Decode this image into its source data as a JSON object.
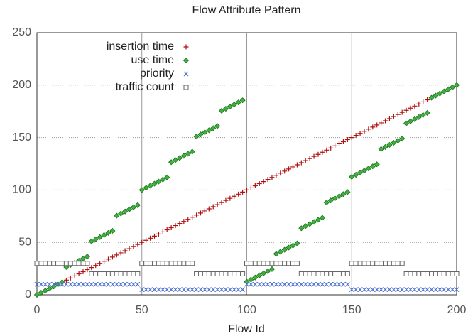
{
  "chart_data": {
    "type": "scatter",
    "title": "Flow Attribute Pattern",
    "x_label": "Flow Id",
    "x": [
      0,
      2,
      4,
      6,
      8,
      10,
      12,
      14,
      16,
      18,
      20,
      22,
      24,
      26,
      28,
      30,
      32,
      34,
      36,
      38,
      40,
      42,
      44,
      46,
      48,
      50,
      52,
      54,
      56,
      58,
      60,
      62,
      64,
      66,
      68,
      70,
      72,
      74,
      76,
      78,
      80,
      82,
      84,
      86,
      88,
      90,
      92,
      94,
      96,
      98,
      100,
      102,
      104,
      106,
      108,
      110,
      112,
      114,
      116,
      118,
      120,
      122,
      124,
      126,
      128,
      130,
      132,
      134,
      136,
      138,
      140,
      142,
      144,
      146,
      148,
      150,
      152,
      154,
      156,
      158,
      160,
      162,
      164,
      166,
      168,
      170,
      172,
      174,
      176,
      178,
      180,
      182,
      184,
      186,
      188,
      190,
      192,
      194,
      196,
      198,
      200
    ],
    "series": [
      {
        "name": "insertion time",
        "color": "#b01010",
        "marker": "plus",
        "values": [
          0,
          2,
          4,
          6,
          8,
          10,
          12,
          14,
          16,
          18,
          20,
          22,
          24,
          26,
          28,
          30,
          32,
          34,
          36,
          38,
          40,
          42,
          44,
          46,
          48,
          50,
          52,
          54,
          56,
          58,
          60,
          62,
          64,
          66,
          68,
          70,
          72,
          74,
          76,
          78,
          80,
          82,
          84,
          86,
          88,
          90,
          92,
          94,
          96,
          98,
          100,
          102,
          104,
          106,
          108,
          110,
          112,
          114,
          116,
          118,
          120,
          122,
          124,
          126,
          128,
          130,
          132,
          134,
          136,
          138,
          140,
          142,
          144,
          146,
          148,
          150,
          152,
          154,
          156,
          158,
          160,
          162,
          164,
          166,
          168,
          170,
          172,
          174,
          176,
          178,
          180,
          182,
          184,
          186,
          188,
          190,
          192,
          194,
          196,
          198,
          200
        ]
      },
      {
        "name": "use time",
        "color": "#3cb43c",
        "marker": "diamond",
        "values": [
          0,
          2,
          4,
          6,
          8,
          10,
          12,
          26.5,
          28.5,
          30.5,
          32.5,
          34.5,
          36.5,
          51,
          53,
          55,
          57,
          59,
          61,
          75.5,
          77.5,
          79.5,
          81.5,
          83.5,
          85.5,
          100,
          102,
          104,
          106,
          108,
          110,
          112,
          126.5,
          128.5,
          130.5,
          132.5,
          134.5,
          136.5,
          151,
          153,
          155,
          157,
          159,
          161,
          175.5,
          177.5,
          179.5,
          181.5,
          183.5,
          185.5,
          12.5,
          14.5,
          16.5,
          18.5,
          20.5,
          22.5,
          24.5,
          39,
          41,
          43,
          45,
          47,
          49,
          63.5,
          65.5,
          67.5,
          69.5,
          71.5,
          73.5,
          88,
          90,
          92,
          94,
          96,
          98,
          112.5,
          114.5,
          116.5,
          118.5,
          120.5,
          122.5,
          124.5,
          139,
          141,
          143,
          145,
          147,
          149,
          163.5,
          165.5,
          167.5,
          169.5,
          171.5,
          173.5,
          188,
          190,
          192,
          194,
          196,
          198,
          200
        ]
      },
      {
        "name": "priority",
        "color": "#4a6fd0",
        "marker": "cross",
        "values": [
          10,
          10,
          10,
          10,
          10,
          10,
          10,
          10,
          10,
          10,
          10,
          10,
          10,
          10,
          10,
          10,
          10,
          10,
          10,
          10,
          10,
          10,
          10,
          10,
          10,
          5,
          5,
          5,
          5,
          5,
          5,
          5,
          5,
          5,
          5,
          5,
          5,
          5,
          5,
          5,
          5,
          5,
          5,
          5,
          5,
          5,
          5,
          5,
          5,
          5,
          10,
          10,
          10,
          10,
          10,
          10,
          10,
          10,
          10,
          10,
          10,
          10,
          10,
          10,
          10,
          10,
          10,
          10,
          10,
          10,
          10,
          10,
          10,
          10,
          10,
          5,
          5,
          5,
          5,
          5,
          5,
          5,
          5,
          5,
          5,
          5,
          5,
          5,
          5,
          5,
          5,
          5,
          5,
          5,
          5,
          5,
          5,
          5,
          5,
          5,
          5
        ]
      },
      {
        "name": "traffic count",
        "color": "#666666",
        "marker": "square",
        "values": [
          30,
          30,
          30,
          30,
          30,
          30,
          30,
          30,
          30,
          30,
          30,
          30,
          30,
          20,
          20,
          20,
          20,
          20,
          20,
          20,
          20,
          20,
          20,
          20,
          20,
          30,
          30,
          30,
          30,
          30,
          30,
          30,
          30,
          30,
          30,
          30,
          30,
          30,
          20,
          20,
          20,
          20,
          20,
          20,
          20,
          20,
          20,
          20,
          20,
          20,
          30,
          30,
          30,
          30,
          30,
          30,
          30,
          30,
          30,
          30,
          30,
          30,
          30,
          20,
          20,
          20,
          20,
          20,
          20,
          20,
          20,
          20,
          20,
          20,
          20,
          30,
          30,
          30,
          30,
          30,
          30,
          30,
          30,
          30,
          30,
          30,
          30,
          30,
          20,
          20,
          20,
          20,
          20,
          20,
          20,
          20,
          20,
          20,
          20,
          20,
          20
        ]
      }
    ],
    "xlim": [
      0,
      200
    ],
    "xticks": [
      0,
      50,
      100,
      150,
      200
    ],
    "ylim": [
      0,
      250
    ],
    "yticks": [
      0,
      50,
      100,
      150,
      200,
      250
    ],
    "grid": true,
    "legend": "upper left"
  }
}
